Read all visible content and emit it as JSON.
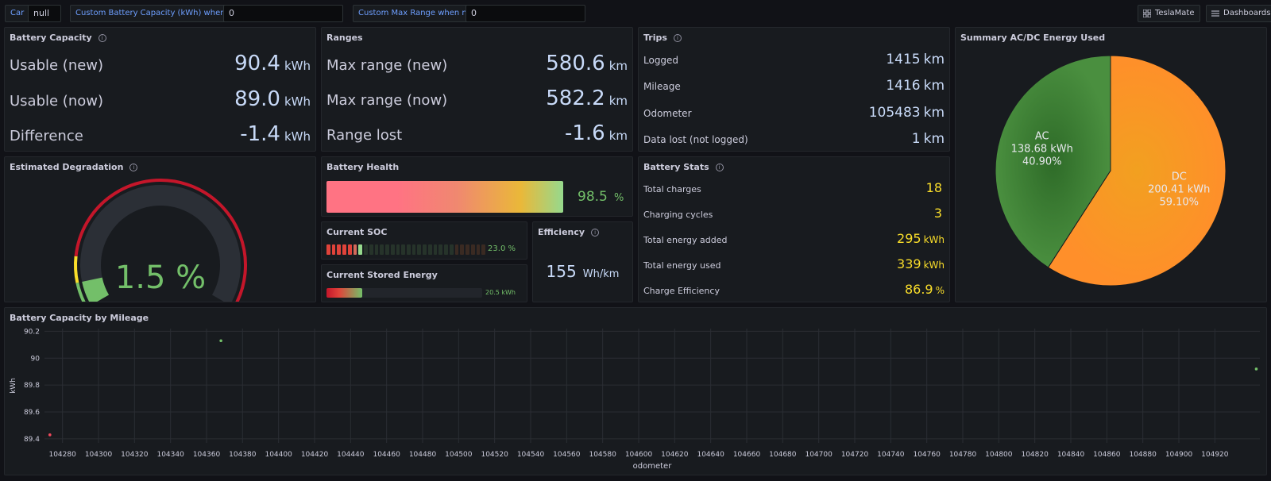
{
  "toolbar": {
    "car_label": "Car",
    "car_value": "null",
    "capacity_label": "Custom Battery Capacity (kWh) when new",
    "capacity_value": "0",
    "range_label": "Custom Max Range when new",
    "range_value": "0",
    "teslamate_label": "TeslaMate",
    "dashboards_label": "Dashboards"
  },
  "battery_capacity": {
    "title": "Battery Capacity",
    "rows": [
      {
        "label": "Usable (new)",
        "value": "90.4",
        "unit": "kWh"
      },
      {
        "label": "Usable (now)",
        "value": "89.0",
        "unit": "kWh"
      },
      {
        "label": "Difference",
        "value": "-1.4",
        "unit": "kWh"
      }
    ]
  },
  "ranges": {
    "title": "Ranges",
    "rows": [
      {
        "label": "Max range (new)",
        "value": "580.6",
        "unit": "km"
      },
      {
        "label": "Max range (now)",
        "value": "582.2",
        "unit": "km"
      },
      {
        "label": "Range lost",
        "value": "-1.6",
        "unit": "km"
      }
    ]
  },
  "trips": {
    "title": "Trips",
    "rows": [
      {
        "label": "Logged",
        "value": "1415",
        "unit": "km"
      },
      {
        "label": "Mileage",
        "value": "1416",
        "unit": "km"
      },
      {
        "label": "Odometer",
        "value": "105483",
        "unit": "km"
      },
      {
        "label": "Data lost (not logged)",
        "value": "1",
        "unit": "km"
      }
    ]
  },
  "summary_energy": {
    "title": "Summary AC/DC Energy Used",
    "slices": [
      {
        "name": "AC",
        "value_text": "138.68 kWh",
        "percent_text": "40.90%",
        "value": 138.68,
        "percent": 40.9,
        "color": "#37872d"
      },
      {
        "name": "DC",
        "value_text": "200.41 kWh",
        "percent_text": "59.10%",
        "value": 200.41,
        "percent": 59.1,
        "color": "#ff9830"
      }
    ]
  },
  "degradation": {
    "title": "Estimated Degradation",
    "value": "1.5 %",
    "level": 1.5,
    "max": 20
  },
  "battery_health": {
    "title": "Battery Health",
    "value": "98.5",
    "unit": "%",
    "level": 98.5
  },
  "current_soc": {
    "title": "Current SOC",
    "value": "23.0 %",
    "level": 23.0
  },
  "current_stored": {
    "title": "Current Stored Energy",
    "value": "20.5 kWh",
    "level": 23.0
  },
  "efficiency": {
    "title": "Efficiency",
    "value": "155",
    "unit": "Wh/km"
  },
  "battery_stats": {
    "title": "Battery Stats",
    "rows": [
      {
        "label": "Total charges",
        "value": "18",
        "unit": ""
      },
      {
        "label": "Charging cycles",
        "value": "3",
        "unit": ""
      },
      {
        "label": "Total energy added",
        "value": "295",
        "unit": "kWh"
      },
      {
        "label": "Total energy used",
        "value": "339",
        "unit": "kWh"
      },
      {
        "label": "Charge Efficiency",
        "value": "86.9",
        "unit": "%"
      }
    ]
  },
  "mileage_chart": {
    "title": "Battery Capacity by Mileage",
    "chart_data": {
      "type": "scatter",
      "xlabel": "odometer",
      "ylabel": "kWh",
      "xlim": [
        104270,
        104945
      ],
      "ylim": [
        89.37,
        90.22
      ],
      "x_ticks": [
        "104280",
        "104300",
        "104320",
        "104340",
        "104360",
        "104380",
        "104400",
        "104420",
        "104440",
        "104460",
        "104480",
        "104500",
        "104520",
        "104540",
        "104560",
        "104580",
        "104600",
        "104620",
        "104640",
        "104660",
        "104680",
        "104700",
        "104720",
        "104740",
        "104760",
        "104780",
        "104800",
        "104820",
        "104840",
        "104860",
        "104880",
        "104900",
        "104920"
      ],
      "y_ticks": [
        "90.2",
        "90",
        "89.8",
        "89.6",
        "89.4"
      ],
      "points": [
        {
          "x": 104273,
          "y": 89.43,
          "color": "#f2495c"
        },
        {
          "x": 104368,
          "y": 90.13,
          "color": "#73bf69"
        },
        {
          "x": 104943,
          "y": 89.92,
          "color": "#73bf69"
        }
      ]
    }
  }
}
